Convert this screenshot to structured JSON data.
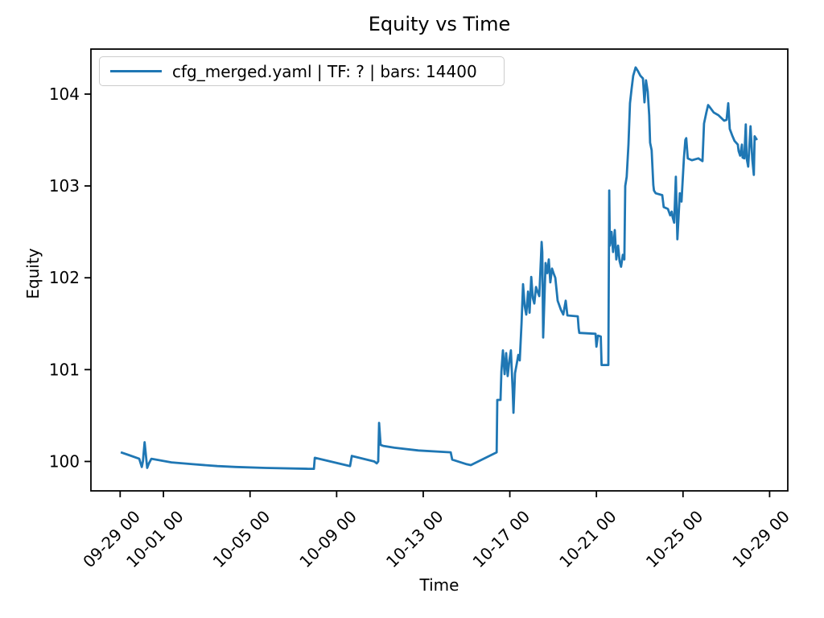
{
  "figure": {
    "title": "Equity vs Time",
    "xlabel": "Time",
    "ylabel": "Equity"
  },
  "legend": {
    "label": "cfg_merged.yaml | TF: ? | bars: 14400",
    "line_color": "#1f77b4"
  },
  "chart_data": {
    "type": "line",
    "title": "Equity vs Time",
    "xlabel": "Time",
    "ylabel": "Equity",
    "legend_entries": [
      "cfg_merged.yaml | TF: ? | bars: 14400"
    ],
    "legend_position": "upper left",
    "grid": false,
    "line_color": "#1f77b4",
    "axis_color": "#000000",
    "x_unit": "days since 09-29 00:00, tick labels formatted MM-DD HH",
    "xlim_days": [
      -1.35,
      30.84
    ],
    "ylim": [
      99.68,
      104.49
    ],
    "x_ticks": [
      {
        "t": 0,
        "label": "09-29 00"
      },
      {
        "t": 2,
        "label": "10-01 00"
      },
      {
        "t": 6,
        "label": "10-05 00"
      },
      {
        "t": 10,
        "label": "10-09 00"
      },
      {
        "t": 14,
        "label": "10-13 00"
      },
      {
        "t": 18,
        "label": "10-17 00"
      },
      {
        "t": 22,
        "label": "10-21 00"
      },
      {
        "t": 26,
        "label": "10-25 00"
      },
      {
        "t": 30,
        "label": "10-29 00"
      }
    ],
    "y_ticks": [
      {
        "v": 100,
        "label": "100"
      },
      {
        "v": 101,
        "label": "101"
      },
      {
        "v": 102,
        "label": "102"
      },
      {
        "v": 103,
        "label": "103"
      },
      {
        "v": 104,
        "label": "104"
      }
    ],
    "series": [
      {
        "name": "cfg_merged.yaml | TF: ? | bars: 14400",
        "points": [
          [
            0.03,
            100.1
          ],
          [
            0.4,
            100.07
          ],
          [
            0.88,
            100.03
          ],
          [
            1.0,
            99.94
          ],
          [
            1.05,
            100.0
          ],
          [
            1.13,
            100.21
          ],
          [
            1.25,
            99.93
          ],
          [
            1.33,
            99.98
          ],
          [
            1.44,
            100.03
          ],
          [
            2.37,
            99.99
          ],
          [
            3.37,
            99.97
          ],
          [
            4.49,
            99.95
          ],
          [
            5.34,
            99.94
          ],
          [
            6.72,
            99.93
          ],
          [
            8.69,
            99.92
          ],
          [
            8.95,
            99.92
          ],
          [
            8.99,
            100.04
          ],
          [
            10.62,
            99.95
          ],
          [
            10.7,
            100.06
          ],
          [
            11.74,
            100.0
          ],
          [
            11.85,
            99.98
          ],
          [
            11.92,
            100.0
          ],
          [
            11.96,
            100.42
          ],
          [
            12.03,
            100.18
          ],
          [
            12.15,
            100.17
          ],
          [
            12.67,
            100.15
          ],
          [
            13.78,
            100.12
          ],
          [
            15.27,
            100.1
          ],
          [
            15.34,
            100.02
          ],
          [
            16.01,
            99.97
          ],
          [
            16.2,
            99.96
          ],
          [
            17.39,
            100.1
          ],
          [
            17.42,
            100.67
          ],
          [
            17.57,
            100.67
          ],
          [
            17.61,
            100.98
          ],
          [
            17.68,
            101.21
          ],
          [
            17.76,
            100.95
          ],
          [
            17.83,
            101.18
          ],
          [
            17.9,
            100.93
          ],
          [
            17.98,
            101.1
          ],
          [
            18.05,
            101.21
          ],
          [
            18.13,
            100.78
          ],
          [
            18.17,
            100.53
          ],
          [
            18.24,
            100.96
          ],
          [
            18.31,
            101.05
          ],
          [
            18.39,
            101.16
          ],
          [
            18.46,
            101.1
          ],
          [
            18.54,
            101.5
          ],
          [
            18.61,
            101.93
          ],
          [
            18.69,
            101.69
          ],
          [
            18.76,
            101.6
          ],
          [
            18.84,
            101.85
          ],
          [
            18.91,
            101.62
          ],
          [
            18.99,
            102.01
          ],
          [
            19.06,
            101.78
          ],
          [
            19.13,
            101.72
          ],
          [
            19.21,
            101.9
          ],
          [
            19.28,
            101.85
          ],
          [
            19.36,
            101.8
          ],
          [
            19.47,
            102.39
          ],
          [
            19.5,
            102.28
          ],
          [
            19.54,
            101.35
          ],
          [
            19.65,
            102.16
          ],
          [
            19.73,
            102.05
          ],
          [
            19.8,
            102.2
          ],
          [
            19.87,
            101.95
          ],
          [
            19.95,
            102.1
          ],
          [
            20.02,
            102.05
          ],
          [
            20.1,
            102.0
          ],
          [
            20.21,
            101.75
          ],
          [
            20.36,
            101.65
          ],
          [
            20.47,
            101.6
          ],
          [
            20.58,
            101.75
          ],
          [
            20.66,
            101.59
          ],
          [
            21.14,
            101.58
          ],
          [
            21.18,
            101.45
          ],
          [
            21.21,
            101.4
          ],
          [
            21.96,
            101.39
          ],
          [
            22.0,
            101.25
          ],
          [
            22.07,
            101.37
          ],
          [
            22.2,
            101.36
          ],
          [
            22.24,
            101.05
          ],
          [
            22.55,
            101.05
          ],
          [
            22.59,
            102.95
          ],
          [
            22.62,
            102.35
          ],
          [
            22.7,
            102.5
          ],
          [
            22.77,
            102.28
          ],
          [
            22.85,
            102.52
          ],
          [
            22.92,
            102.2
          ],
          [
            23.0,
            102.35
          ],
          [
            23.07,
            102.18
          ],
          [
            23.14,
            102.12
          ],
          [
            23.22,
            102.25
          ],
          [
            23.29,
            102.2
          ],
          [
            23.33,
            103.0
          ],
          [
            23.4,
            103.1
          ],
          [
            23.48,
            103.45
          ],
          [
            23.55,
            103.9
          ],
          [
            23.62,
            104.05
          ],
          [
            23.7,
            104.2
          ],
          [
            23.81,
            104.29
          ],
          [
            23.92,
            104.25
          ],
          [
            24.03,
            104.2
          ],
          [
            24.15,
            104.17
          ],
          [
            24.22,
            103.91
          ],
          [
            24.29,
            104.15
          ],
          [
            24.37,
            104.03
          ],
          [
            24.44,
            103.77
          ],
          [
            24.48,
            103.47
          ],
          [
            24.55,
            103.39
          ],
          [
            24.63,
            103.01
          ],
          [
            24.66,
            102.95
          ],
          [
            24.74,
            102.92
          ],
          [
            25.04,
            102.9
          ],
          [
            25.11,
            102.77
          ],
          [
            25.3,
            102.75
          ],
          [
            25.41,
            102.68
          ],
          [
            25.48,
            102.72
          ],
          [
            25.52,
            102.66
          ],
          [
            25.59,
            102.6
          ],
          [
            25.67,
            103.1
          ],
          [
            25.74,
            102.42
          ],
          [
            25.85,
            102.92
          ],
          [
            25.93,
            102.83
          ],
          [
            26.04,
            103.3
          ],
          [
            26.11,
            103.5
          ],
          [
            26.15,
            103.52
          ],
          [
            26.22,
            103.3
          ],
          [
            26.41,
            103.28
          ],
          [
            26.71,
            103.3
          ],
          [
            26.9,
            103.27
          ],
          [
            26.97,
            103.68
          ],
          [
            27.08,
            103.8
          ],
          [
            27.16,
            103.88
          ],
          [
            27.23,
            103.86
          ],
          [
            27.42,
            103.8
          ],
          [
            27.64,
            103.77
          ],
          [
            27.9,
            103.71
          ],
          [
            28.01,
            103.72
          ],
          [
            28.09,
            103.9
          ],
          [
            28.16,
            103.62
          ],
          [
            28.27,
            103.55
          ],
          [
            28.38,
            103.49
          ],
          [
            28.53,
            103.45
          ],
          [
            28.57,
            103.38
          ],
          [
            28.64,
            103.33
          ],
          [
            28.72,
            103.45
          ],
          [
            28.75,
            103.31
          ],
          [
            28.83,
            103.3
          ],
          [
            28.9,
            103.67
          ],
          [
            28.94,
            103.3
          ],
          [
            29.01,
            103.21
          ],
          [
            29.12,
            103.65
          ],
          [
            29.2,
            103.29
          ],
          [
            29.27,
            103.12
          ],
          [
            29.31,
            103.54
          ],
          [
            29.42,
            103.5
          ]
        ]
      }
    ]
  }
}
